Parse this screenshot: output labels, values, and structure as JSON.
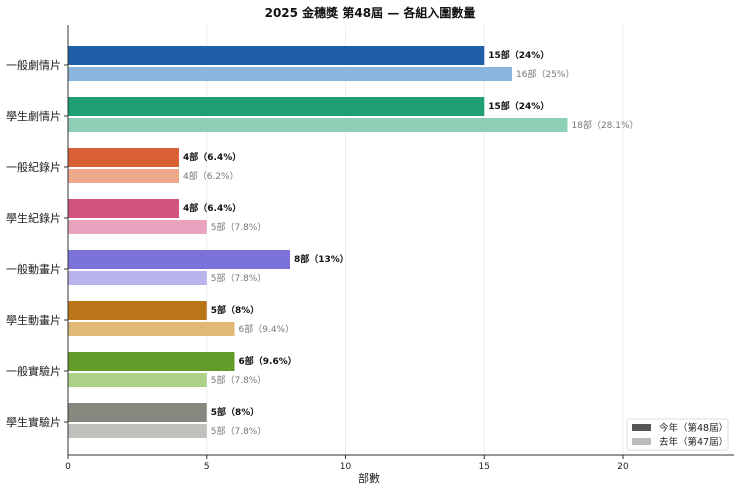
{
  "chart_data": {
    "type": "bar",
    "orientation": "horizontal",
    "title": "2025 金穗獎 第48屆 — 各組入圍數量",
    "xlabel": "部數",
    "ylabel": "",
    "xlim": [
      0,
      24
    ],
    "xticks": [
      0,
      5,
      10,
      15,
      20
    ],
    "grid": "vertical",
    "legend_position": "bottom-right",
    "categories": [
      "一般劇情片",
      "學生劇情片",
      "一般紀錄片",
      "學生紀錄片",
      "一般動畫片",
      "學生動畫片",
      "一般實驗片",
      "學生實驗片"
    ],
    "series": [
      {
        "name": "今年（第48屆）",
        "values": [
          15,
          15,
          4,
          4,
          8,
          5,
          6,
          5
        ],
        "labels": [
          "15部（24%）",
          "15部（24%）",
          "4部（6.4%）",
          "4部（6.4%）",
          "8部（13%）",
          "5部（8%）",
          "6部（9.6%）",
          "5部（8%）"
        ],
        "colors": [
          "#1f5fa8",
          "#1f9e74",
          "#d95f35",
          "#d1547f",
          "#7b73db",
          "#b97518",
          "#629b27",
          "#878780"
        ]
      },
      {
        "name": "去年（第47屆）",
        "values": [
          16,
          18,
          4,
          5,
          5,
          6,
          5,
          5
        ],
        "labels": [
          "16部（25%）",
          "18部（28.1%）",
          "4部（6.2%）",
          "5部（7.8%）",
          "5部（7.8%）",
          "6部（9.4%）",
          "5部（7.8%）",
          "5部（7.8%）"
        ],
        "colors": [
          "#8ab6de",
          "#8dcfb4",
          "#eda98a",
          "#eaa3be",
          "#b8b3ea",
          "#e0b877",
          "#abd186",
          "#c0c0bd"
        ]
      }
    ],
    "legend_colors": [
      "#555555",
      "#bbbbbb"
    ]
  }
}
